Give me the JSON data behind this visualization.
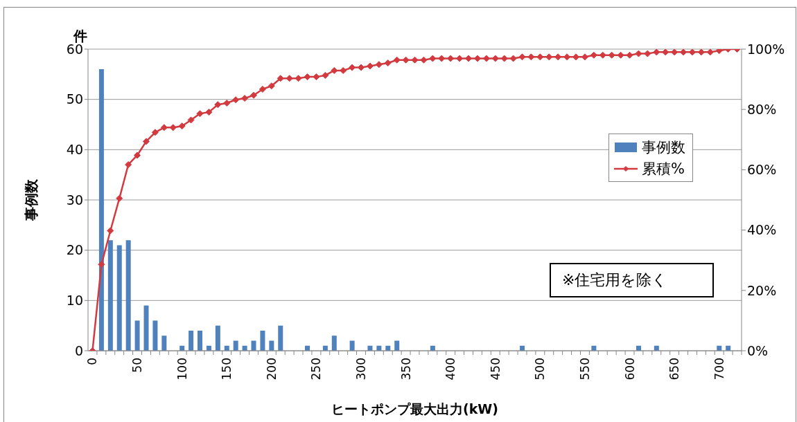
{
  "chart_data": {
    "type": "bar",
    "categories": [
      "0",
      null,
      null,
      null,
      null,
      "50",
      null,
      null,
      null,
      null,
      "100",
      null,
      null,
      null,
      null,
      "150",
      null,
      null,
      null,
      null,
      "200",
      null,
      null,
      null,
      null,
      "250",
      null,
      null,
      null,
      null,
      "300",
      null,
      null,
      null,
      null,
      "350",
      null,
      null,
      null,
      null,
      "400",
      null,
      null,
      null,
      null,
      "450",
      null,
      null,
      null,
      null,
      "500",
      null,
      null,
      null,
      null,
      "550",
      null,
      null,
      null,
      null,
      "600",
      null,
      null,
      null,
      null,
      "650",
      null,
      null,
      null,
      null,
      "700",
      null,
      null
    ],
    "series": [
      {
        "name": "事例数",
        "type": "bar",
        "color": "#4f81bd",
        "values": [
          0,
          56,
          22,
          21,
          22,
          6,
          9,
          6,
          3,
          0,
          1,
          4,
          4,
          1,
          5,
          1,
          2,
          1,
          2,
          4,
          2,
          5,
          0,
          0,
          1,
          0,
          1,
          3,
          0,
          2,
          0,
          1,
          1,
          1,
          2,
          0,
          0,
          0,
          1,
          0,
          0,
          0,
          0,
          0,
          0,
          0,
          0,
          0,
          1,
          0,
          0,
          0,
          0,
          0,
          0,
          0,
          1,
          0,
          0,
          0,
          0,
          1,
          0,
          1,
          0,
          0,
          0,
          0,
          0,
          0,
          1,
          1,
          0
        ]
      },
      {
        "name": "累積%",
        "type": "line",
        "axis": "y2",
        "color": "#d23a40",
        "values": [
          0,
          28.6,
          39.8,
          50.5,
          61.7,
          64.8,
          69.4,
          72.4,
          74.0,
          74.0,
          74.5,
          76.5,
          78.6,
          79.1,
          81.6,
          82.1,
          83.2,
          83.7,
          84.7,
          86.7,
          87.8,
          90.3,
          90.3,
          90.3,
          90.8,
          90.8,
          91.3,
          92.9,
          92.9,
          93.9,
          93.9,
          94.4,
          94.9,
          95.4,
          96.4,
          96.4,
          96.4,
          96.4,
          96.9,
          96.9,
          96.9,
          96.9,
          96.9,
          96.9,
          96.9,
          96.9,
          96.9,
          96.9,
          97.4,
          97.4,
          97.4,
          97.4,
          97.4,
          97.4,
          97.4,
          97.4,
          98.0,
          98.0,
          98.0,
          98.0,
          98.0,
          98.5,
          98.5,
          99.0,
          99.0,
          99.0,
          99.0,
          99.0,
          99.0,
          99.0,
          99.5,
          100,
          100
        ]
      }
    ],
    "xlabel": "ヒートポンプ最大出力(kW)",
    "ylabel": "事例数",
    "ylim": [
      0,
      60
    ],
    "yticks": [
      0,
      10,
      20,
      30,
      40,
      50,
      60
    ],
    "y2lim": [
      0,
      100
    ],
    "y2ticks": [
      {
        "value": 0,
        "label": "0%"
      },
      {
        "value": 20,
        "label": "20%"
      },
      {
        "value": 40,
        "label": "40%"
      },
      {
        "value": 60,
        "label": "60%"
      },
      {
        "value": 80,
        "label": "80%"
      },
      {
        "value": 100,
        "label": "100%"
      }
    ],
    "grid": "y",
    "legend": "right",
    "marker": "diamond",
    "annotations": [
      "件",
      "※住宅用を除く"
    ]
  }
}
